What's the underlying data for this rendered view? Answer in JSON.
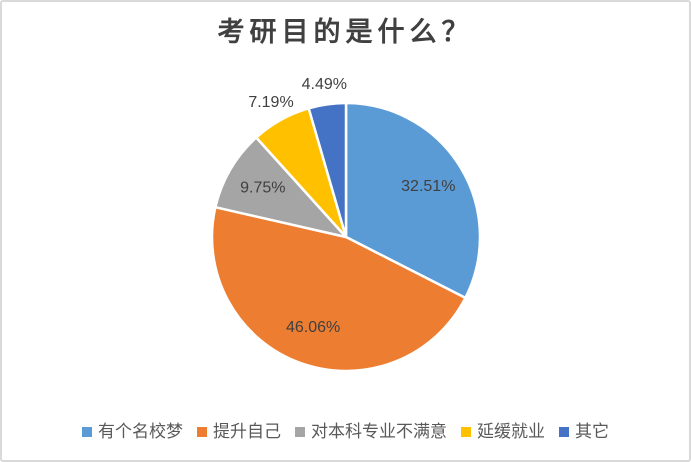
{
  "window": {
    "background": "#ffffff",
    "border_color": "#d9d9d9"
  },
  "chart_data": {
    "type": "pie",
    "title": "考研目的是什么？",
    "direction": "clockwise",
    "start_angle_deg": 0,
    "legend_position": "bottom",
    "slices": [
      {
        "label": "有个名校梦",
        "value": 32.51,
        "display": "32.51%",
        "color": "#5B9BD5",
        "label_placement": "inside"
      },
      {
        "label": "提升自己",
        "value": 46.06,
        "display": "46.06%",
        "color": "#ED7D31",
        "label_placement": "inside"
      },
      {
        "label": "对本科专业不满意",
        "value": 9.75,
        "display": "9.75%",
        "color": "#A5A5A5",
        "label_placement": "inside"
      },
      {
        "label": "延缓就业",
        "value": 7.19,
        "display": "7.19%",
        "color": "#FFC000",
        "label_placement": "outside"
      },
      {
        "label": "其它",
        "value": 4.49,
        "display": "4.49%",
        "color": "#4472C4",
        "label_placement": "outside"
      }
    ],
    "colors": {
      "title": "#404040",
      "data_label": "#404040",
      "legend_text": "#595959",
      "slice_border": "#ffffff"
    }
  }
}
